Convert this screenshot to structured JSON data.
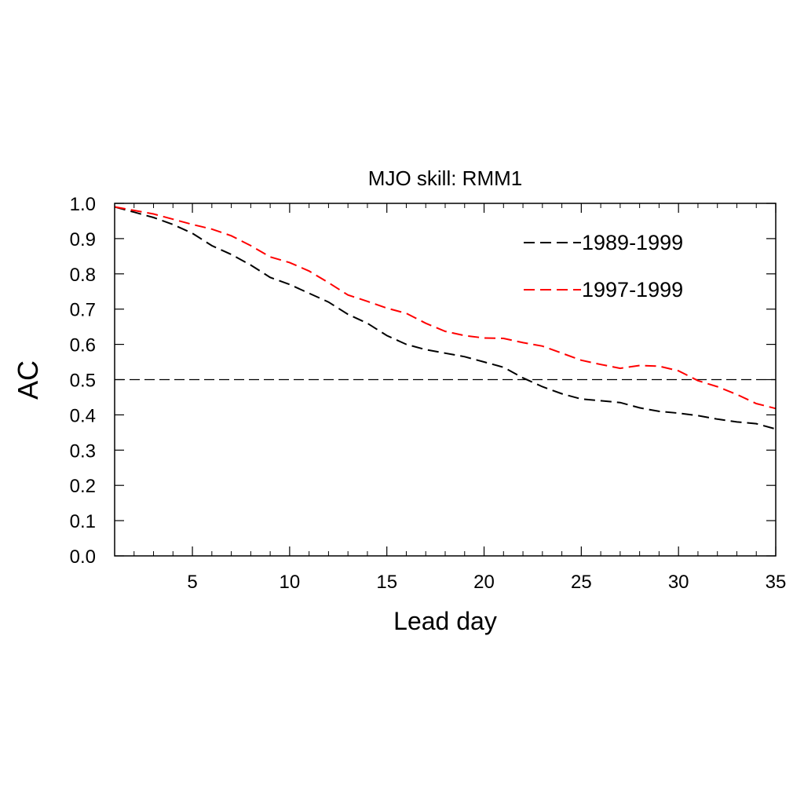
{
  "chart_data": {
    "type": "line",
    "title": "MJO skill: RMM1",
    "xlabel": "Lead day",
    "ylabel": "AC",
    "xlim": [
      1,
      35
    ],
    "ylim": [
      0.0,
      1.0
    ],
    "x_ticks": [
      5,
      10,
      15,
      20,
      25,
      30,
      35
    ],
    "x_tick_labels": [
      "5",
      "10",
      "15",
      "20",
      "25",
      "30",
      "35"
    ],
    "y_ticks": [
      0.0,
      0.1,
      0.2,
      0.3,
      0.4,
      0.5,
      0.6,
      0.7,
      0.8,
      0.9,
      1.0
    ],
    "y_tick_labels": [
      "0.0",
      "0.1",
      "0.2",
      "0.3",
      "0.4",
      "0.5",
      "0.6",
      "0.7",
      "0.8",
      "0.9",
      "1.0"
    ],
    "grid": false,
    "legend_position": "top-right",
    "reference_line": {
      "y": 0.5,
      "color": "#000000",
      "style": "dashed"
    },
    "x": [
      1,
      2,
      3,
      4,
      5,
      6,
      7,
      8,
      9,
      10,
      11,
      12,
      13,
      14,
      15,
      16,
      17,
      18,
      19,
      20,
      21,
      22,
      23,
      24,
      25,
      26,
      27,
      28,
      29,
      30,
      31,
      32,
      33,
      34,
      35
    ],
    "series": [
      {
        "name": "1989-1999",
        "color": "#000000",
        "style": "dashed",
        "values": [
          0.99,
          0.975,
          0.96,
          0.94,
          0.915,
          0.88,
          0.855,
          0.825,
          0.79,
          0.77,
          0.745,
          0.72,
          0.685,
          0.66,
          0.625,
          0.6,
          0.585,
          0.575,
          0.565,
          0.55,
          0.535,
          0.505,
          0.48,
          0.46,
          0.445,
          0.44,
          0.435,
          0.42,
          0.41,
          0.405,
          0.398,
          0.388,
          0.38,
          0.375,
          0.36
        ]
      },
      {
        "name": "1997-1999",
        "color": "#ff0000",
        "style": "dashed",
        "values": [
          0.99,
          0.98,
          0.97,
          0.955,
          0.94,
          0.927,
          0.908,
          0.88,
          0.848,
          0.832,
          0.808,
          0.775,
          0.74,
          0.722,
          0.703,
          0.688,
          0.66,
          0.637,
          0.625,
          0.618,
          0.617,
          0.605,
          0.595,
          0.575,
          0.555,
          0.543,
          0.532,
          0.54,
          0.538,
          0.525,
          0.497,
          0.48,
          0.458,
          0.432,
          0.418
        ]
      }
    ]
  }
}
